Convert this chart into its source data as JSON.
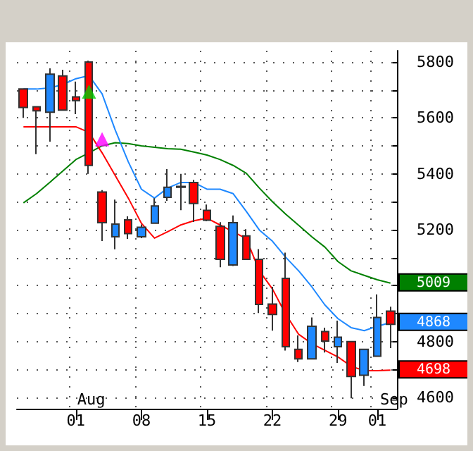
{
  "chart_data": {
    "type": "candlestick",
    "categories": [
      null,
      null,
      null,
      null,
      "01",
      null,
      null,
      null,
      null,
      "08",
      null,
      null,
      null,
      null,
      "15",
      null,
      null,
      null,
      null,
      "22",
      null,
      null,
      null,
      null,
      "29",
      null,
      null,
      "01",
      null
    ],
    "ohlc": [
      [
        5703,
        5705,
        5600,
        5637
      ],
      [
        5640,
        5640,
        5470,
        5625
      ],
      [
        5620,
        5777,
        5515,
        5756
      ],
      [
        5750,
        5772,
        5628,
        5628
      ],
      [
        5675,
        5730,
        5613,
        5662
      ],
      [
        5800,
        5805,
        5400,
        5430
      ],
      [
        5335,
        5342,
        5160,
        5225
      ],
      [
        5175,
        5308,
        5130,
        5220
      ],
      [
        5235,
        5248,
        5167,
        5186
      ],
      [
        5175,
        5219,
        5170,
        5209
      ],
      [
        5223,
        5313,
        5223,
        5285
      ],
      [
        5316,
        5417,
        5303,
        5352
      ],
      [
        5355,
        5400,
        5270,
        5352
      ],
      [
        5369,
        5378,
        5228,
        5294
      ],
      [
        5269,
        5290,
        5230,
        5234
      ],
      [
        5212,
        5227,
        5066,
        5094
      ],
      [
        5074,
        5251,
        5070,
        5225
      ],
      [
        5178,
        5202,
        5094,
        5094
      ],
      [
        5094,
        5131,
        4902,
        4933
      ],
      [
        4934,
        4996,
        4839,
        4897
      ],
      [
        5026,
        5118,
        4768,
        4782
      ],
      [
        4772,
        4822,
        4727,
        4738
      ],
      [
        4738,
        4886,
        4738,
        4855
      ],
      [
        4836,
        4850,
        4761,
        4802
      ],
      [
        4782,
        4875,
        4724,
        4816
      ],
      [
        4800,
        4800,
        4597,
        4675
      ],
      [
        4680,
        4775,
        4641,
        4772
      ],
      [
        4748,
        4969,
        4748,
        4886
      ],
      [
        4909,
        4925,
        4777,
        4862
      ]
    ],
    "colors": [
      "#ff0000",
      "#ff0000",
      "#1e88ff",
      "#ff0000",
      "#ff0000",
      "#ff0000",
      "#ff0000",
      "#1e88ff",
      "#ff0000",
      "#1e88ff",
      "#1e88ff",
      "#1e88ff",
      "#ff0000",
      "#ff0000",
      "#ff0000",
      "#ff0000",
      "#1e88ff",
      "#ff0000",
      "#ff0000",
      "#ff0000",
      "#ff0000",
      "#ff0000",
      "#1e88ff",
      "#ff0000",
      "#1e88ff",
      "#ff0000",
      "#1e88ff",
      "#1e88ff",
      "#ff0000"
    ],
    "series": [
      {
        "type": "line",
        "color": "#008000",
        "values": [
          5296,
          5329,
          5369,
          5410,
          5451,
          5475,
          5500,
          5511,
          5508,
          5500,
          5495,
          5490,
          5488,
          5478,
          5467,
          5451,
          5430,
          5402,
          5349,
          5300,
          5256,
          5216,
          5175,
          5138,
          5086,
          5053,
          5037,
          5021,
          5009
        ],
        "value_labels": [
          null,
          null,
          null,
          null,
          null,
          null,
          null,
          null,
          null,
          null,
          null,
          null,
          null,
          null,
          null,
          null,
          null,
          null,
          null,
          null,
          null,
          null,
          null,
          null,
          null,
          null,
          null,
          null,
          "5009"
        ]
      },
      {
        "type": "line",
        "color": "#1e88ff",
        "values": [
          5703,
          5703,
          5707,
          5719,
          5740,
          5751,
          5686,
          5557,
          5443,
          5345,
          5313,
          5349,
          5369,
          5369,
          5345,
          5345,
          5329,
          5266,
          5199,
          5159,
          5102,
          5053,
          4996,
          4931,
          4882,
          4850,
          4839,
          4855,
          4868
        ],
        "value_labels": [
          null,
          null,
          null,
          null,
          null,
          null,
          null,
          null,
          null,
          null,
          null,
          null,
          null,
          null,
          null,
          null,
          null,
          null,
          null,
          null,
          null,
          null,
          null,
          null,
          null,
          null,
          null,
          null,
          "4868"
        ]
      },
      {
        "type": "line",
        "color": "#ff0000",
        "values": [
          5568,
          5568,
          5568,
          5568,
          5568,
          5548,
          5475,
          5394,
          5313,
          5223,
          5170,
          5193,
          5217,
          5232,
          5241,
          5217,
          5193,
          5168,
          5053,
          4988,
          4899,
          4826,
          4793,
          4769,
          4745,
          4712,
          4696,
          4696,
          4698
        ],
        "value_labels": [
          null,
          null,
          null,
          null,
          null,
          null,
          null,
          null,
          null,
          null,
          null,
          null,
          null,
          null,
          null,
          null,
          null,
          null,
          null,
          null,
          null,
          null,
          null,
          null,
          null,
          null,
          null,
          null,
          "4698"
        ]
      },
      {
        "type": "scatter",
        "marker": "triangle",
        "color": "#00cc00",
        "values": [
          null,
          null,
          null,
          null,
          null,
          5694,
          null,
          null,
          null,
          null,
          null,
          null,
          null,
          null,
          null,
          null,
          null,
          null,
          null,
          null,
          null,
          null,
          null,
          null,
          null,
          null,
          null,
          null,
          null
        ]
      },
      {
        "type": "scatter",
        "marker": "triangle",
        "color": "#ff00ff",
        "values": [
          null,
          null,
          null,
          null,
          null,
          null,
          5524,
          null,
          null,
          null,
          null,
          null,
          null,
          null,
          null,
          null,
          null,
          null,
          null,
          null,
          null,
          null,
          null,
          null,
          null,
          null,
          null,
          null,
          null
        ]
      }
    ],
    "ylim": [
      4560,
      5840
    ],
    "yticks": [
      4600,
      {
        "value": 4700,
        "label": null
      },
      4800,
      {
        "value": 4900,
        "label": null
      },
      {
        "value": 5000,
        "label": null
      },
      {
        "value": 5100,
        "label": null
      },
      5200,
      {
        "value": 5300,
        "label": null
      },
      5400,
      {
        "value": 5500,
        "label": null
      },
      5600,
      {
        "value": 5700,
        "label": null
      },
      5800
    ],
    "annotations": [
      "Aug",
      "Sep"
    ],
    "grid": true
  }
}
